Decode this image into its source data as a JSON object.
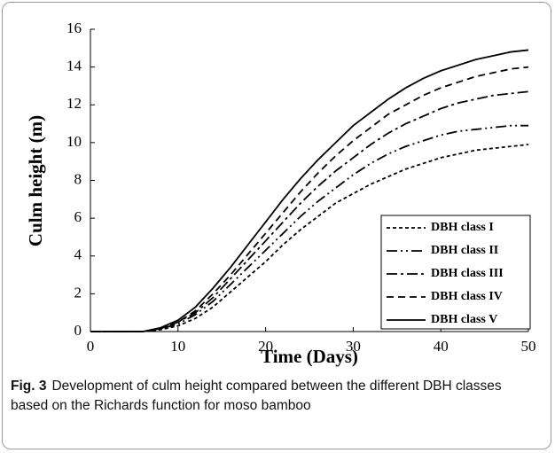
{
  "chart_data": {
    "type": "line",
    "x_label": "Time (Days)",
    "y_label": "Culm height  (m)",
    "x": [
      0,
      2,
      4,
      6,
      8,
      10,
      12,
      14,
      16,
      18,
      20,
      22,
      24,
      26,
      28,
      30,
      32,
      34,
      36,
      38,
      40,
      42,
      44,
      46,
      48,
      50
    ],
    "series": [
      {
        "name": "DBH class I",
        "color": "#000000",
        "dash": "4,3",
        "values": [
          0,
          0,
          0,
          0,
          0.1,
          0.3,
          0.7,
          1.3,
          2.1,
          2.9,
          3.7,
          4.6,
          5.4,
          6.1,
          6.8,
          7.3,
          7.8,
          8.2,
          8.6,
          8.9,
          9.2,
          9.4,
          9.6,
          9.7,
          9.8,
          9.9
        ]
      },
      {
        "name": "DBH class II",
        "color": "#000000",
        "dash": "12,4,2,4,2,4",
        "values": [
          0,
          0,
          0,
          0,
          0.15,
          0.4,
          0.9,
          1.6,
          2.5,
          3.4,
          4.3,
          5.2,
          6.1,
          6.9,
          7.6,
          8.3,
          8.9,
          9.4,
          9.8,
          10.1,
          10.4,
          10.6,
          10.7,
          10.8,
          10.9,
          10.9
        ]
      },
      {
        "name": "DBH class III",
        "color": "#000000",
        "dash": "12,4,3,4",
        "values": [
          0,
          0,
          0,
          0,
          0.15,
          0.5,
          1.0,
          1.8,
          2.8,
          3.8,
          4.8,
          5.8,
          6.8,
          7.7,
          8.5,
          9.2,
          9.9,
          10.5,
          11.0,
          11.4,
          11.8,
          12.1,
          12.3,
          12.5,
          12.6,
          12.7
        ]
      },
      {
        "name": "DBH class IV",
        "color": "#000000",
        "dash": "8,5",
        "values": [
          0,
          0,
          0,
          0,
          0.15,
          0.5,
          1.1,
          2.0,
          3.0,
          4.1,
          5.2,
          6.3,
          7.4,
          8.4,
          9.3,
          10.1,
          10.8,
          11.5,
          12.0,
          12.5,
          12.9,
          13.2,
          13.5,
          13.7,
          13.9,
          14.0
        ]
      },
      {
        "name": "DBH class V",
        "color": "#000000",
        "dash": "none",
        "values": [
          0,
          0,
          0,
          0,
          0.2,
          0.6,
          1.3,
          2.3,
          3.4,
          4.6,
          5.8,
          7.0,
          8.1,
          9.1,
          10.0,
          10.9,
          11.6,
          12.3,
          12.9,
          13.4,
          13.8,
          14.1,
          14.4,
          14.6,
          14.8,
          14.9
        ]
      }
    ],
    "xlim": [
      0,
      50
    ],
    "xticks": [
      0,
      10,
      20,
      30,
      40,
      50
    ],
    "ylim": [
      0,
      16
    ],
    "yticks": [
      0,
      2,
      4,
      6,
      8,
      10,
      12,
      14,
      16
    ],
    "legend": "lower right",
    "caption_label": "Fig. 3",
    "caption": "Development of culm height compared between the different DBH classes based on the Richards function for moso bamboo"
  }
}
